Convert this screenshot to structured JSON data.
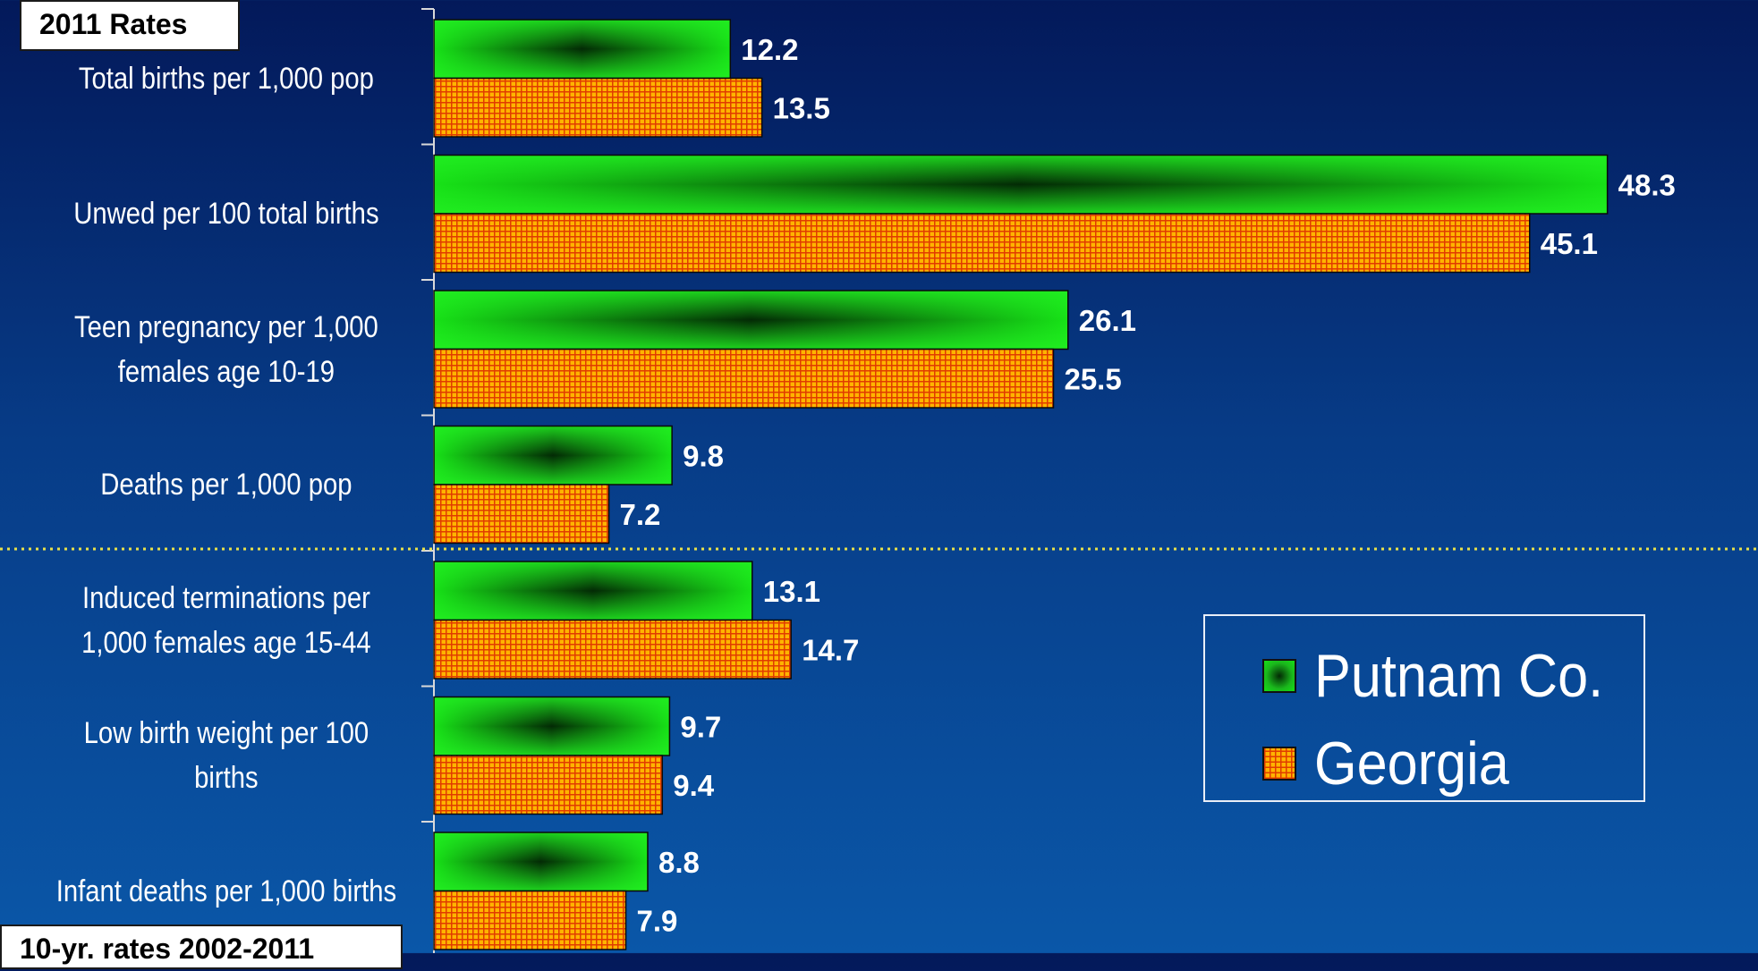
{
  "boxes": {
    "top": "2011 Rates",
    "bottom": "10-yr. rates 2002-2011"
  },
  "colors": {
    "putnam": "#16e016",
    "georgia": "#ffb400",
    "divider": "#e8e14a"
  },
  "chart_data": {
    "type": "bar",
    "orientation": "horizontal",
    "categories": [
      "Total births per 1,000 pop",
      "Unwed per 100 total births",
      "Teen pregnancy per 1,000 females age 10-19",
      "Deaths per 1,000 pop",
      "Induced terminations per 1,000 females age 15-44",
      "Low birth weight per 100 births",
      "Infant deaths per 1,000 births"
    ],
    "category_labels": [
      "Total births per 1,000 pop",
      "Unwed per 100 total births",
      "Teen pregnancy per 1,000\nfemales age 10-19",
      "Deaths per 1,000 pop",
      "Induced terminations per\n1,000 females age 15-44",
      "Low birth weight per 100\nbirths",
      "Infant deaths per 1,000 births"
    ],
    "series": [
      {
        "name": "Putnam Co.",
        "values": [
          12.2,
          48.3,
          26.1,
          9.8,
          13.1,
          9.7,
          8.8
        ]
      },
      {
        "name": "Georgia",
        "values": [
          13.5,
          45.1,
          25.5,
          7.2,
          14.7,
          9.4,
          7.9
        ]
      }
    ],
    "data_labels": true,
    "xlim": [
      0,
      54.5
    ],
    "legend": "lower-right",
    "group_divider_after_index": 3
  }
}
